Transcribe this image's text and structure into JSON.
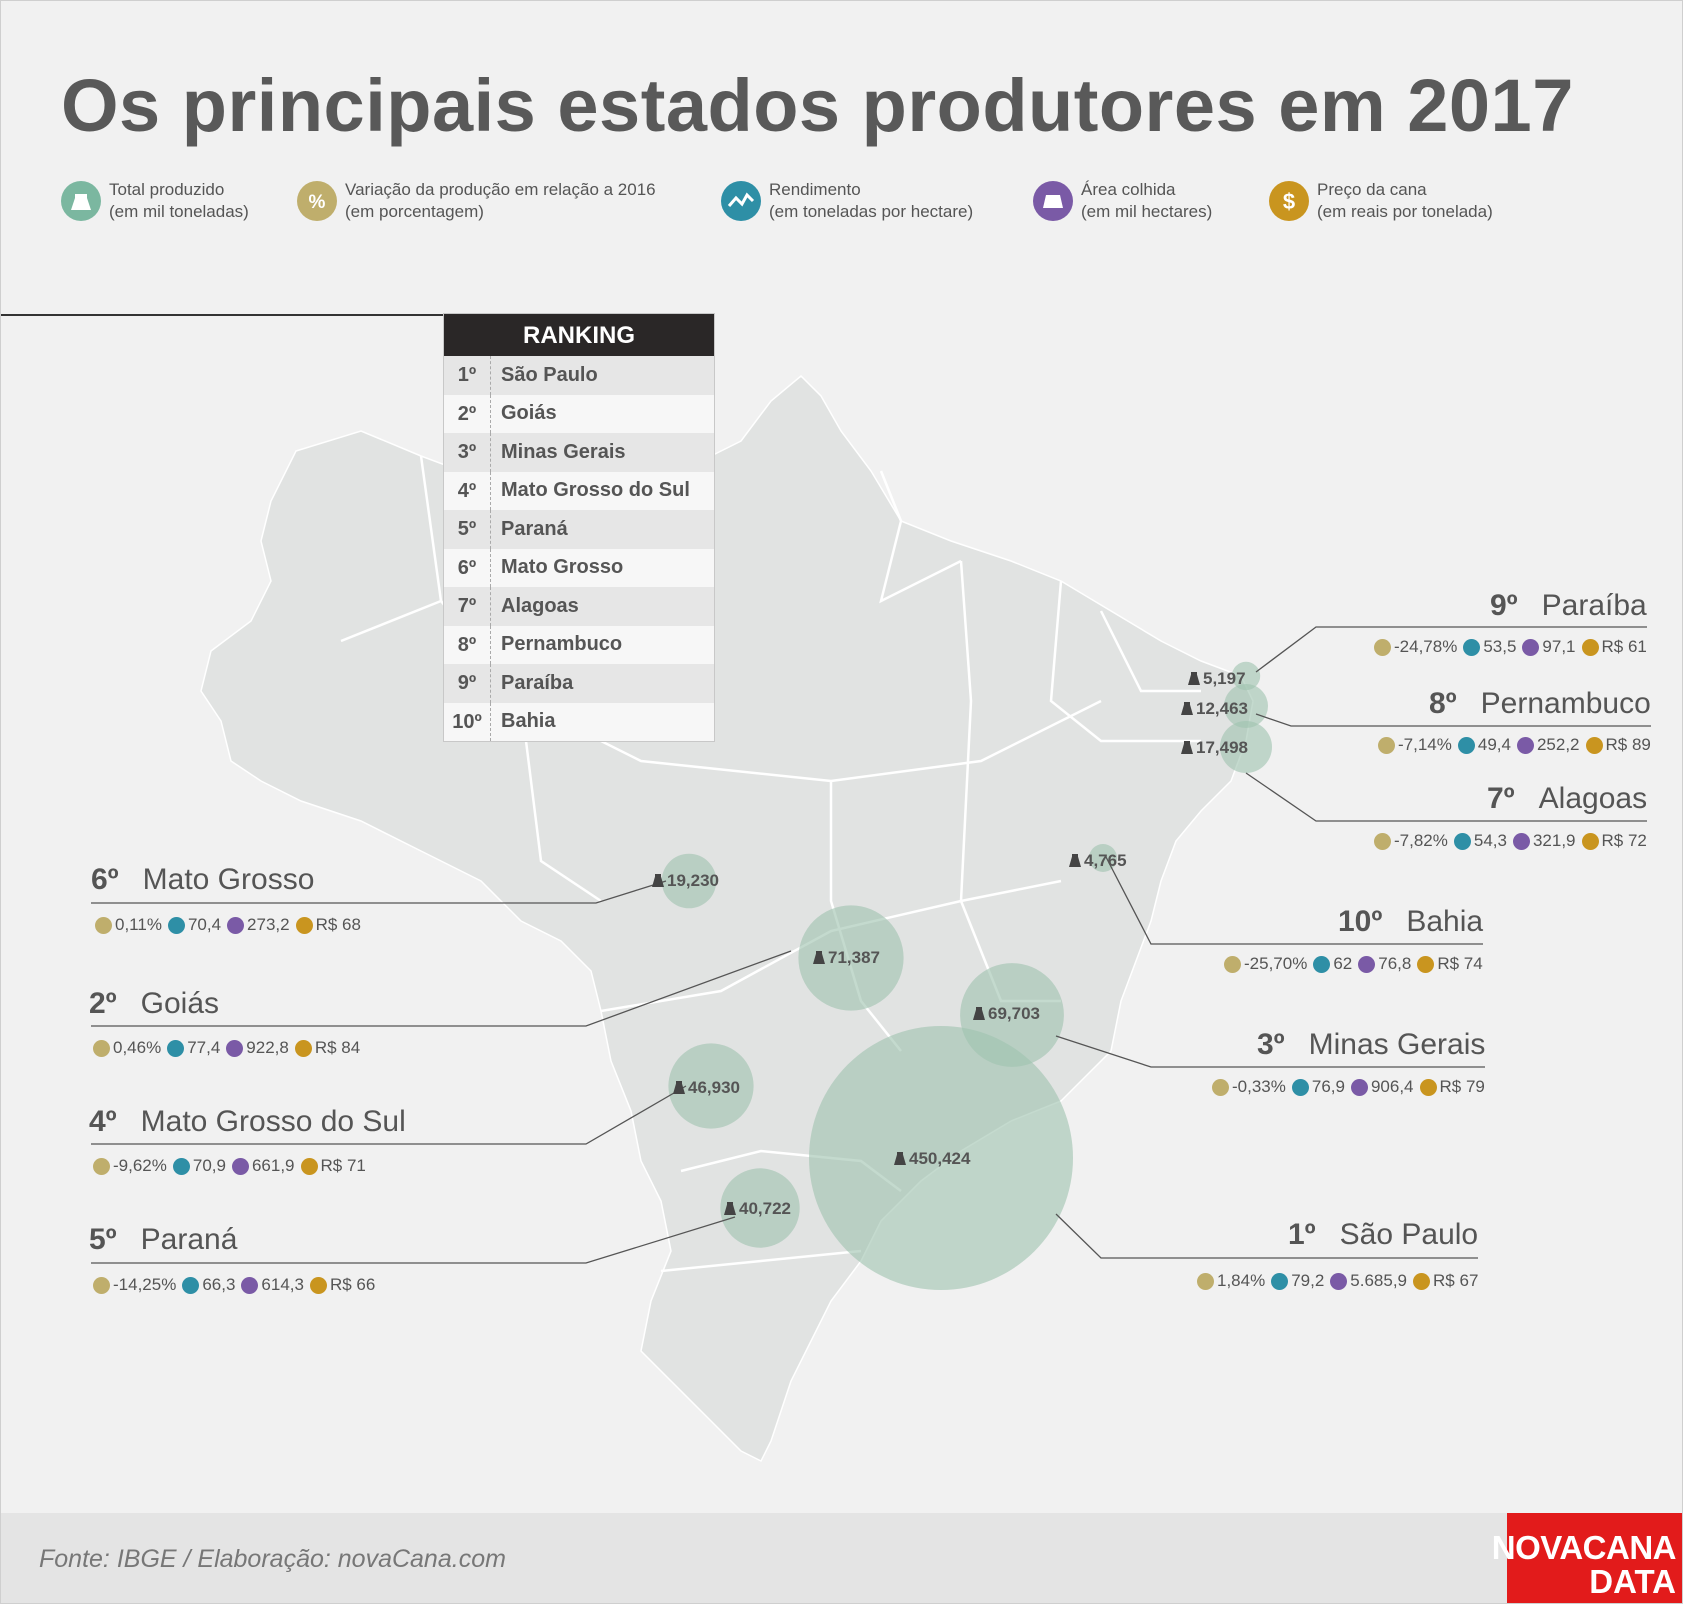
{
  "title": "Os principais estados produtores em 2017",
  "legend": [
    {
      "icon": "weight-icon",
      "color": "#7bb7a0",
      "line1": "Total produzido",
      "line2": "(em mil toneladas)"
    },
    {
      "icon": "percent-icon",
      "color": "#bfae6c",
      "line1": "Variação da produção em relação a 2016",
      "line2": "(em porcentagem)"
    },
    {
      "icon": "trend-icon",
      "color": "#2e8fa6",
      "line1": "Rendimento",
      "line2": "(em toneladas por hectare)"
    },
    {
      "icon": "field-icon",
      "color": "#7a5aa6",
      "line1": "Área colhida",
      "line2": "(em mil hectares)"
    },
    {
      "icon": "dollar-icon",
      "color": "#c9951f",
      "line1": "Preço da cana",
      "line2": "(em reais por tonelada)"
    }
  ],
  "ranking": {
    "header": "RANKING",
    "rows": [
      {
        "rank": "1º",
        "name": "São Paulo"
      },
      {
        "rank": "2º",
        "name": "Goiás"
      },
      {
        "rank": "3º",
        "name": "Minas Gerais"
      },
      {
        "rank": "4º",
        "name": "Mato Grosso do Sul"
      },
      {
        "rank": "5º",
        "name": "Paraná"
      },
      {
        "rank": "6º",
        "name": "Mato Grosso"
      },
      {
        "rank": "7º",
        "name": "Alagoas"
      },
      {
        "rank": "8º",
        "name": "Pernambuco"
      },
      {
        "rank": "9º",
        "name": "Paraíba"
      },
      {
        "rank": "10º",
        "name": "Bahia"
      }
    ]
  },
  "states": [
    {
      "rank": "1º",
      "name": "São Paulo",
      "production": "450,424",
      "production_value": 450424,
      "variation": "1,84%",
      "yield": "79,2",
      "area": "5.685,9",
      "price": "R$ 67"
    },
    {
      "rank": "2º",
      "name": "Goiás",
      "production": "71,387",
      "production_value": 71387,
      "variation": "0,46%",
      "yield": "77,4",
      "area": "922,8",
      "price": "R$ 84"
    },
    {
      "rank": "3º",
      "name": "Minas Gerais",
      "production": "69,703",
      "production_value": 69703,
      "variation": "-0,33%",
      "yield": "76,9",
      "area": "906,4",
      "price": "R$ 79"
    },
    {
      "rank": "4º",
      "name": "Mato Grosso do Sul",
      "production": "46,930",
      "production_value": 46930,
      "variation": "-9,62%",
      "yield": "70,9",
      "area": "661,9",
      "price": "R$ 71"
    },
    {
      "rank": "5º",
      "name": "Paraná",
      "production": "40,722",
      "production_value": 40722,
      "variation": "-14,25%",
      "yield": "66,3",
      "area": "614,3",
      "price": "R$ 66"
    },
    {
      "rank": "6º",
      "name": "Mato Grosso",
      "production": "19,230",
      "production_value": 19230,
      "variation": "0,11%",
      "yield": "70,4",
      "area": "273,2",
      "price": "R$ 68"
    },
    {
      "rank": "7º",
      "name": "Alagoas",
      "production": "17,498",
      "production_value": 17498,
      "variation": "-7,82%",
      "yield": "54,3",
      "area": "321,9",
      "price": "R$ 72"
    },
    {
      "rank": "8º",
      "name": "Pernambuco",
      "production": "12,463",
      "production_value": 12463,
      "variation": "-7,14%",
      "yield": "49,4",
      "area": "252,2",
      "price": "R$ 89"
    },
    {
      "rank": "9º",
      "name": "Paraíba",
      "production": "5,197",
      "production_value": 5197,
      "variation": "-24,78%",
      "yield": "53,5",
      "area": "97,1",
      "price": "R$ 61"
    },
    {
      "rank": "10º",
      "name": "Bahia",
      "production": "4,765",
      "production_value": 4765,
      "variation": "-25,70%",
      "yield": "62",
      "area": "76,8",
      "price": "R$ 74"
    }
  ],
  "colors": {
    "bubble": "#9fc4b0",
    "map": "#e1e3e2",
    "border": "#ffffff",
    "brand": "#e21b1b"
  },
  "footer": {
    "source": "Fonte: IBGE / Elaboração: novaCana.com",
    "logo_line1": "NOVACANA",
    "logo_line2": "DATA"
  }
}
